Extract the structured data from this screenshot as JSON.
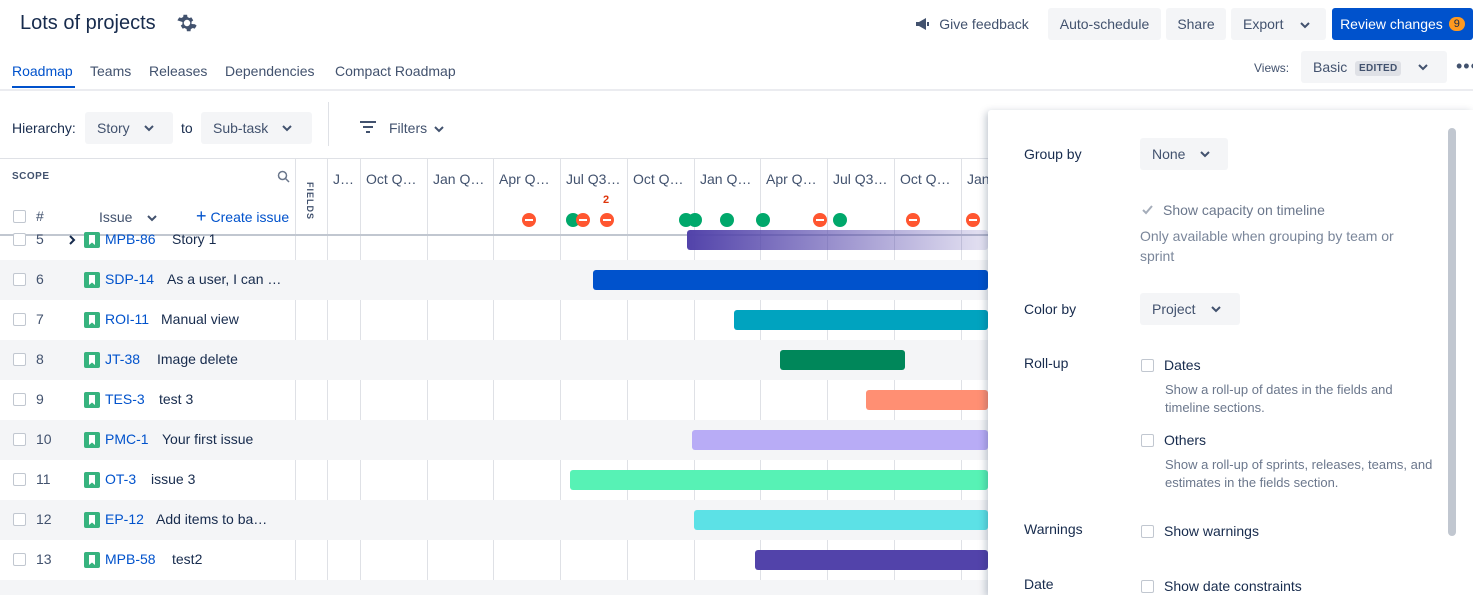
{
  "header": {
    "title": "Lots of projects",
    "give_feedback": "Give feedback",
    "auto_schedule": "Auto-schedule",
    "share": "Share",
    "export": "Export",
    "review_changes": "Review changes",
    "review_count": "9"
  },
  "tabs": [
    "Roadmap",
    "Teams",
    "Releases",
    "Dependencies",
    "Compact Roadmap"
  ],
  "views": {
    "label": "Views:",
    "value": "Basic",
    "tag": "EDITED"
  },
  "hierarchy": {
    "label": "Hierarchy:",
    "from": "Story",
    "to_label": "to",
    "to": "Sub-task",
    "filters": "Filters"
  },
  "scope": {
    "title": "SCOPE",
    "col_num": "#",
    "col_issue": "Issue",
    "create_issue": "Create issue",
    "fields_label": "FIELDS"
  },
  "timeline": {
    "quarters": [
      "J…",
      "Oct Q…",
      "Jan Q…",
      "Apr Q…",
      "Jul Q3…",
      "Oct Q…",
      "Jan Q…",
      "Apr Q…",
      "Jul Q3…",
      "Oct Q…",
      "Jan"
    ],
    "marker_count": "2"
  },
  "rows": [
    {
      "num": "5",
      "key": "MPB-86",
      "summary": "Story 1",
      "color": "#5243aa"
    },
    {
      "num": "6",
      "key": "SDP-14",
      "summary": "As a user, I can …",
      "color": "#0052cc"
    },
    {
      "num": "7",
      "key": "ROI-11",
      "summary": "Manual view",
      "color": "#00a3bf"
    },
    {
      "num": "8",
      "key": "JT-38",
      "summary": "Image delete",
      "color": "#00875a"
    },
    {
      "num": "9",
      "key": "TES-3",
      "summary": "test 3",
      "color": "#ff8f73"
    },
    {
      "num": "10",
      "key": "PMC-1",
      "summary": "Your first issue",
      "color": "#b8acf6"
    },
    {
      "num": "11",
      "key": "OT-3",
      "summary": "issue 3",
      "color": "#57f2b5"
    },
    {
      "num": "12",
      "key": "EP-12",
      "summary": "Add items to ba…",
      "color": "#5ce1e6"
    },
    {
      "num": "13",
      "key": "MPB-58",
      "summary": "test2",
      "color": "#5243aa"
    }
  ],
  "panel": {
    "group_by": {
      "label": "Group by",
      "value": "None"
    },
    "capacity": {
      "label": "Show capacity on timeline",
      "desc": "Only available when grouping by team or sprint"
    },
    "color_by": {
      "label": "Color by",
      "value": "Project"
    },
    "rollup": {
      "label": "Roll-up",
      "dates": "Dates",
      "dates_desc": "Show a roll-up of dates in the fields and timeline sections.",
      "others": "Others",
      "others_desc": "Show a roll-up of sprints, releases, teams, and estimates in the fields section."
    },
    "warnings": {
      "label": "Warnings",
      "option": "Show warnings"
    },
    "date": {
      "label": "Date",
      "option": "Show date constraints"
    }
  }
}
